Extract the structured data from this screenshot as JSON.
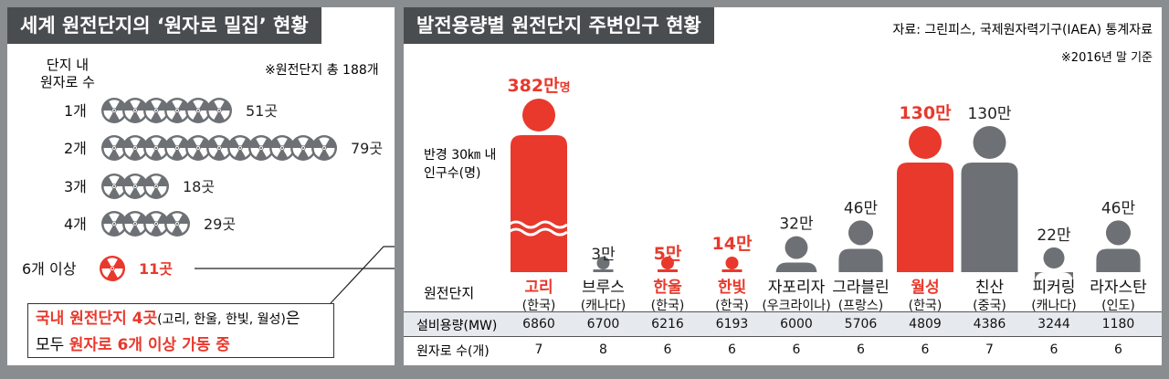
{
  "left": {
    "title": "세계 원전단지의 ‘원자로 밀집’ 현황",
    "note": "※원전단지 총 188개",
    "col_label": [
      "단지 내",
      "원자로 수"
    ],
    "rows": [
      {
        "label": "1개",
        "reactors": 1,
        "icons": 6,
        "count": "51곳"
      },
      {
        "label": "2개",
        "reactors": 2,
        "icons": 11,
        "count": "79곳"
      },
      {
        "label": "3개",
        "reactors": 3,
        "icons": 3,
        "count": "18곳"
      },
      {
        "label": "4개",
        "reactors": 4,
        "icons": 4,
        "count": "29곳"
      },
      {
        "label": "6개 이상",
        "reactors": 6,
        "icons": 1,
        "count": "11곳",
        "highlight": true
      }
    ],
    "callout": {
      "line1_red": "국내 원전단지 4곳",
      "line1_paren": "(고리, 한울, 한빛, 월성)",
      "line1_tail": "은",
      "line2_pre": "모두 ",
      "line2_red": "원자로 6개 이상 가동 중"
    }
  },
  "right": {
    "title": "발전용량별 원전단지 주변인구 현황",
    "source": "자료: 그린피스, 국제원자력기구(IAEA) 통계자료",
    "basis": "※2016년 말 기준",
    "axis_label": [
      "반경 30㎞ 내",
      "인구수(명)"
    ],
    "row_labels": {
      "site": "원전단지",
      "capacity": "설비용량(MW)",
      "reactors": "원자로 수(개)"
    }
  },
  "colors": {
    "korea": "#e8392c",
    "other": "#6d7175",
    "header": "#4a4d50",
    "panel_bg": "#8a8d90",
    "table_band": "#e6eaee"
  },
  "chart_data": {
    "type": "bar",
    "y_unit": "명",
    "axis_break": {
      "series_value": 3820000,
      "note": "first bar truncated with wavy break"
    },
    "categories": [
      "고리",
      "브루스",
      "한울",
      "한빛",
      "자포리자",
      "그라블린",
      "월성",
      "친산",
      "피커링",
      "라자스탄"
    ],
    "countries": [
      "(한국)",
      "(캐나다)",
      "(한국)",
      "(한국)",
      "(우크라이나)",
      "(프랑스)",
      "(한국)",
      "(중국)",
      "(캐나다)",
      "(인도)"
    ],
    "population": [
      3820000,
      30000,
      50000,
      140000,
      320000,
      460000,
      1300000,
      1300000,
      220000,
      460000
    ],
    "population_labels": [
      "382만",
      "3만",
      "5만",
      "14만",
      "32만",
      "46만",
      "130만",
      "130만",
      "22만",
      "46만"
    ],
    "population_label_suffix": [
      "명",
      "",
      "",
      "",
      "",
      "",
      "",
      "",
      "",
      ""
    ],
    "is_korea": [
      true,
      false,
      true,
      true,
      false,
      false,
      true,
      false,
      false,
      false
    ],
    "capacity_mw": [
      6860,
      6700,
      6216,
      6193,
      6000,
      5706,
      4809,
      4386,
      3244,
      1180
    ],
    "reactors": [
      7,
      8,
      6,
      6,
      6,
      6,
      6,
      7,
      6,
      6
    ]
  }
}
